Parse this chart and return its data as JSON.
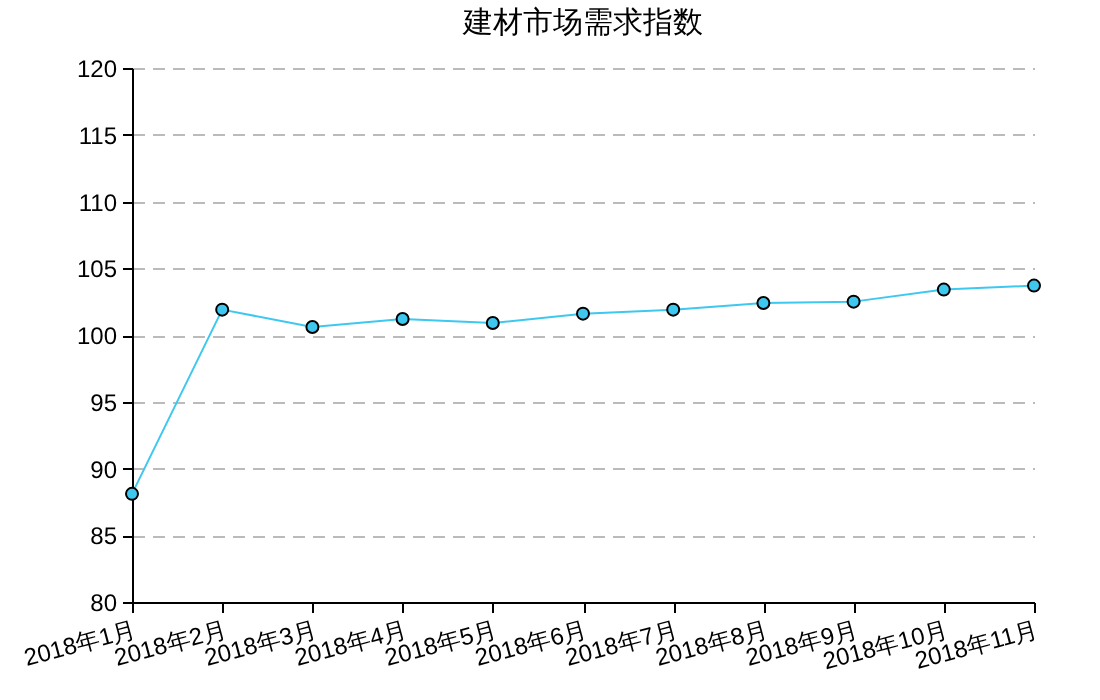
{
  "chart_data": {
    "type": "line",
    "title": "建材市场需求指数",
    "categories": [
      "2018年1月",
      "2018年2月",
      "2018年3月",
      "2018年4月",
      "2018年5月",
      "2018年6月",
      "2018年7月",
      "2018年8月",
      "2018年9月",
      "2018年10月",
      "2018年11月"
    ],
    "series": [
      {
        "color": "#3ec8f0",
        "values": [
          88.1,
          101.9,
          100.6,
          101.2,
          100.9,
          101.6,
          101.9,
          102.4,
          102.5,
          103.4,
          103.7
        ]
      }
    ],
    "ylim": [
      80,
      120
    ],
    "yticks": [
      80,
      85,
      90,
      95,
      100,
      105,
      110,
      115,
      120
    ],
    "grid": "y",
    "marker": "circle",
    "line_style": "solid"
  }
}
